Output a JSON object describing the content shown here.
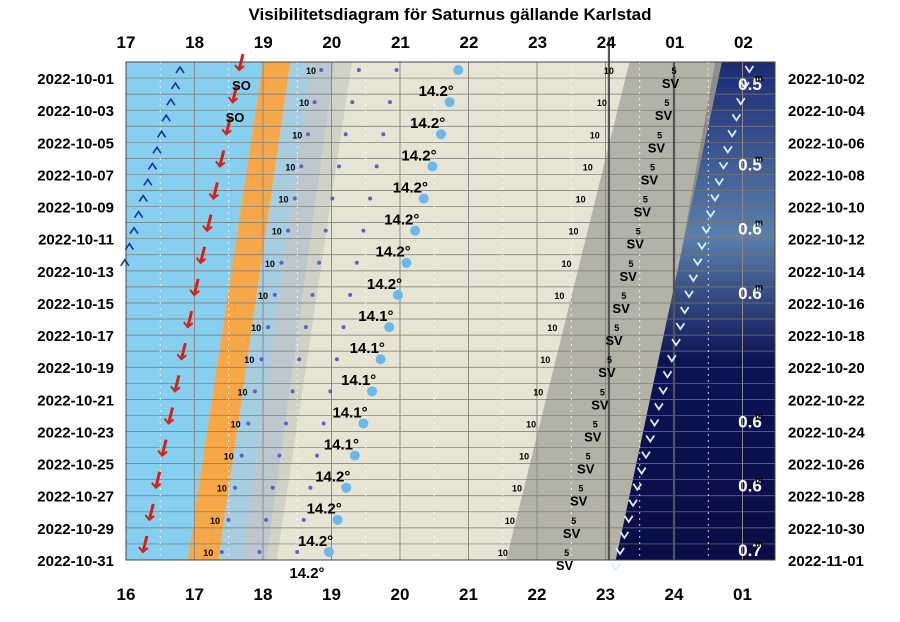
{
  "chart_data": {
    "type": "visibility-diagram",
    "title": "Visibilitetsdiagram för Saturnus gällande Karlstad",
    "top_hour_ticks": [
      "17",
      "18",
      "19",
      "20",
      "21",
      "22",
      "23",
      "24",
      "01",
      "02"
    ],
    "bottom_hour_ticks": [
      "16",
      "17",
      "18",
      "19",
      "20",
      "21",
      "22",
      "23",
      "24",
      "01"
    ],
    "left_dates": [
      "2022-10-01",
      "2022-10-03",
      "2022-10-05",
      "2022-10-07",
      "2022-10-09",
      "2022-10-11",
      "2022-10-13",
      "2022-10-15",
      "2022-10-17",
      "2022-10-19",
      "2022-10-21",
      "2022-10-23",
      "2022-10-25",
      "2022-10-27",
      "2022-10-29",
      "2022-10-31"
    ],
    "right_dates": [
      "2022-10-02",
      "2022-10-04",
      "2022-10-06",
      "2022-10-08",
      "2022-10-10",
      "2022-10-12",
      "2022-10-14",
      "2022-10-16",
      "2022-10-18",
      "2022-10-20",
      "2022-10-22",
      "2022-10-24",
      "2022-10-26",
      "2022-10-28",
      "2022-10-30",
      "2022-11-01"
    ],
    "culmination_altitude": [
      "14.2°",
      "14.2°",
      "14.2°",
      "14.2°",
      "14.2°",
      "14.2°",
      "14.2°",
      "14.1°",
      "14.1°",
      "14.1°",
      "14.1°",
      "14.1°",
      "14.2°",
      "14.2°",
      "14.2°",
      "14.2°"
    ],
    "sun_marker": "SO",
    "sun_marker_rows": [
      0,
      1
    ],
    "sv_marker": "SV",
    "altitude_ten_label": "10",
    "altitude_five_label": "5",
    "magnitudes": [
      "0.5",
      "0.5",
      "0.6",
      "0.6",
      "0.6",
      "0.6",
      "0.7"
    ],
    "magnitude_rows": [
      0,
      2.5,
      4.5,
      6.5,
      10.5,
      12.5,
      14.5
    ],
    "magnitude_unit": "m"
  }
}
